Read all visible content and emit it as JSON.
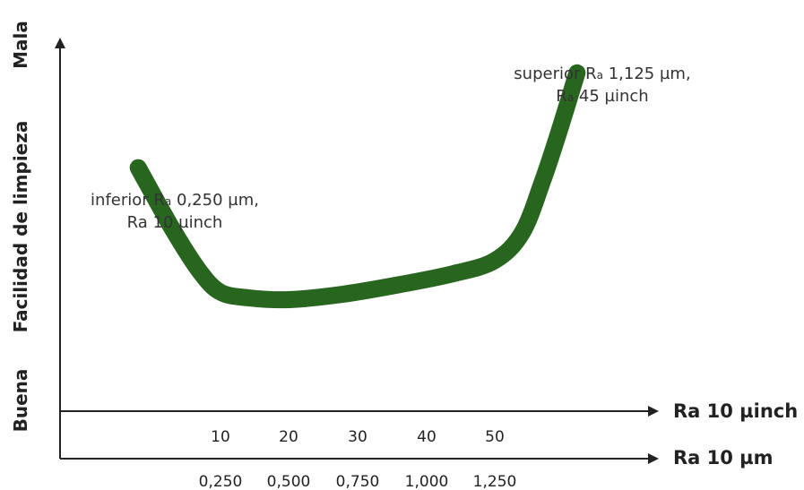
{
  "chart_data": {
    "type": "line",
    "x_axis_primary": {
      "label": "Ra 10 µinch",
      "ticks": [
        "10",
        "20",
        "30",
        "40",
        "50"
      ],
      "tick_values": [
        10,
        20,
        30,
        40,
        50
      ]
    },
    "x_axis_secondary": {
      "label": "Ra 10 µm",
      "ticks": [
        "0,250",
        "0,500",
        "0,750",
        "1,000",
        "1,250"
      ]
    },
    "y_axis": {
      "label": "Facilidad de limpieza",
      "top_label": "Mala",
      "bottom_label": "Buena",
      "range": [
        0,
        1
      ]
    },
    "series": [
      {
        "color": "#286620",
        "x": [
          -2,
          3,
          7,
          10,
          14,
          20,
          28,
          36,
          44,
          50,
          54,
          57,
          59.5,
          62
        ],
        "y": [
          0.655,
          0.49,
          0.375,
          0.32,
          0.305,
          0.3,
          0.315,
          0.34,
          0.37,
          0.405,
          0.48,
          0.62,
          0.76,
          0.91
        ]
      }
    ],
    "annotations": [
      {
        "label_main": "inferior R",
        "label_sub": "a",
        "label_rest": " 0,250 µm,",
        "line2": "Ra 10 µinch"
      },
      {
        "label_main": "superior R",
        "label_sub": "a",
        "label_rest": " 1,125 µm,",
        "line2_main": "R",
        "line2_sub": "a",
        "line2_rest": " 45 µinch"
      }
    ],
    "grid": false,
    "legend": "none"
  },
  "colors": {
    "curve": "#286620",
    "axis": "#222222"
  }
}
